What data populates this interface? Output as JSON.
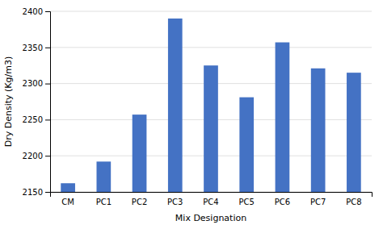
{
  "chart_data": {
    "type": "bar",
    "categories": [
      "CM",
      "PC1",
      "PC2",
      "PC3",
      "PC4",
      "PC5",
      "PC6",
      "PC7",
      "PC8"
    ],
    "values": [
      2162,
      2192,
      2257,
      2390,
      2325,
      2281,
      2357,
      2321,
      2315
    ],
    "color": "#4472C4",
    "xlabel": "Mix Designation",
    "ylabel": "Dry Density (Kg/m3)",
    "ylim": [
      2150,
      2400
    ],
    "yticks": [
      2150,
      2200,
      2250,
      2300,
      2350,
      2400
    ],
    "grid": true
  }
}
